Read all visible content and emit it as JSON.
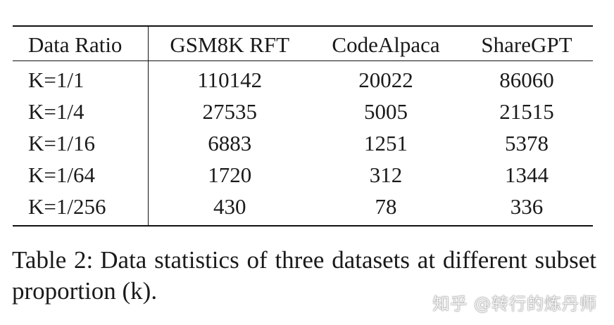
{
  "table": {
    "headers": [
      "Data Ratio",
      "GSM8K RFT",
      "CodeAlpaca",
      "ShareGPT"
    ],
    "rows": [
      [
        "K=1/1",
        "110142",
        "20022",
        "86060"
      ],
      [
        "K=1/4",
        "27535",
        "5005",
        "21515"
      ],
      [
        "K=1/16",
        "6883",
        "1251",
        "5378"
      ],
      [
        "K=1/64",
        "1720",
        "312",
        "1344"
      ],
      [
        "K=1/256",
        "430",
        "78",
        "336"
      ]
    ]
  },
  "caption": {
    "label": "Table 2:",
    "text": "Data statistics of three datasets at different subset proportion (k)."
  },
  "watermark": "知乎 @转行的炼丹师"
}
